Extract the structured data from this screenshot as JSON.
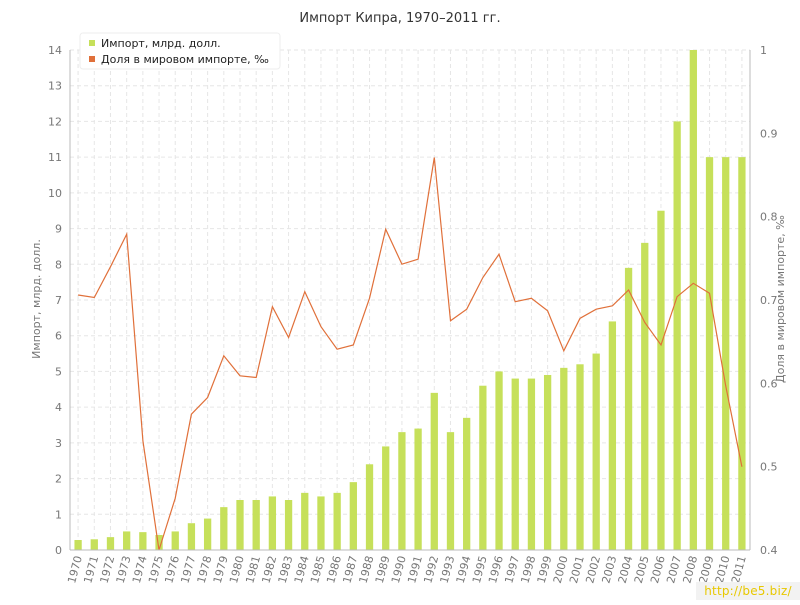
{
  "chart_data": {
    "type": "bar+line",
    "title": "Импорт Кипра, 1970–2011 гг.",
    "ylabel_left": "Импорт, млрд. долл.",
    "ylabel_right": "Доля в мировом импорте, ‰",
    "ylim_left": [
      0,
      14
    ],
    "ylim_right": [
      0.4,
      1.0
    ],
    "yticks_left": [
      "0",
      "1",
      "2",
      "3",
      "4",
      "5",
      "6",
      "7",
      "8",
      "9",
      "10",
      "11",
      "12",
      "13",
      "14"
    ],
    "yticks_right": [
      "0.4",
      "0.5",
      "0.6",
      "0.7",
      "0.8",
      "0.9",
      "1"
    ],
    "grid": true,
    "legend_position": "top-left",
    "categories": [
      "1970",
      "1971",
      "1972",
      "1973",
      "1974",
      "1975",
      "1976",
      "1977",
      "1978",
      "1979",
      "1980",
      "1981",
      "1982",
      "1983",
      "1984",
      "1985",
      "1986",
      "1987",
      "1988",
      "1989",
      "1990",
      "1991",
      "1992",
      "1993",
      "1994",
      "1995",
      "1996",
      "1997",
      "1998",
      "1999",
      "2000",
      "2001",
      "2002",
      "2003",
      "2004",
      "2005",
      "2006",
      "2007",
      "2008",
      "2009",
      "2010",
      "2011"
    ],
    "series": [
      {
        "name": "Импорт, млрд. долл.",
        "type": "bar",
        "axis": "left",
        "color": "#c6e05a",
        "values": [
          0.28,
          0.3,
          0.36,
          0.52,
          0.5,
          0.42,
          0.52,
          0.75,
          0.88,
          1.2,
          1.4,
          1.4,
          1.5,
          1.4,
          1.6,
          1.5,
          1.6,
          1.9,
          2.4,
          2.9,
          3.3,
          3.4,
          4.4,
          3.3,
          3.7,
          4.6,
          5.0,
          4.8,
          4.8,
          4.9,
          5.1,
          5.2,
          5.5,
          6.4,
          7.9,
          8.6,
          9.5,
          12.0,
          14.0,
          11.0,
          11.0,
          11.0
        ]
      },
      {
        "name": "Доля в мировом импорте, ‰",
        "type": "line",
        "axis": "right",
        "color": "#e0703a",
        "values": [
          0.706,
          0.703,
          0.74,
          0.779,
          0.531,
          0.4,
          0.462,
          0.563,
          0.583,
          0.633,
          0.609,
          0.607,
          0.692,
          0.655,
          0.71,
          0.668,
          0.641,
          0.646,
          0.702,
          0.785,
          0.743,
          0.749,
          0.871,
          0.675,
          0.689,
          0.727,
          0.755,
          0.698,
          0.702,
          0.687,
          0.639,
          0.678,
          0.689,
          0.693,
          0.712,
          0.673,
          0.646,
          0.704,
          0.72,
          0.708,
          0.597,
          0.5
        ]
      }
    ]
  },
  "watermark": "http://be5.biz/"
}
